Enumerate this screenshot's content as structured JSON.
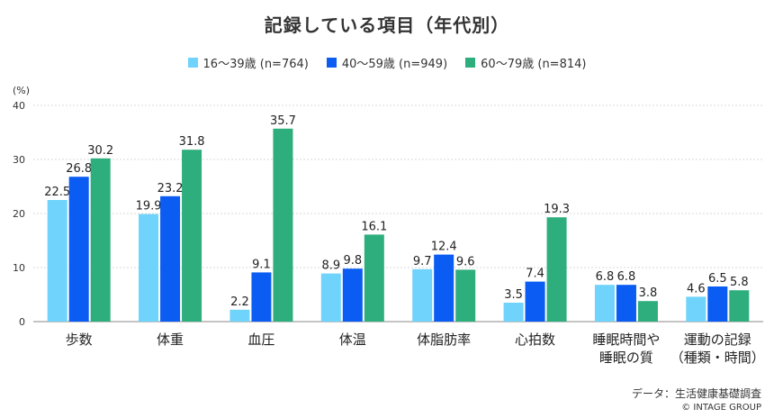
{
  "chart_data": {
    "type": "bar",
    "title": "記録している項目（年代別）",
    "ylabel": "(%)",
    "ylim": [
      0,
      40
    ],
    "yticks": [
      0,
      10,
      20,
      30,
      40
    ],
    "categories": [
      [
        "歩数"
      ],
      [
        "体重"
      ],
      [
        "血圧"
      ],
      [
        "体温"
      ],
      [
        "体脂肪率"
      ],
      [
        "心拍数"
      ],
      [
        "睡眠時間や",
        "睡眠の質"
      ],
      [
        "運動の記録",
        "（種類・時間）"
      ]
    ],
    "series": [
      {
        "name": "16〜39歳 (n=764)",
        "color": "#6fd3fb",
        "values": [
          22.5,
          19.9,
          2.2,
          8.9,
          9.7,
          3.5,
          6.8,
          4.6
        ]
      },
      {
        "name": "40〜59歳 (n=949)",
        "color": "#0a5cf2",
        "values": [
          26.8,
          23.2,
          9.1,
          9.8,
          12.4,
          7.4,
          6.8,
          6.5
        ]
      },
      {
        "name": "60〜79歳 (n=814)",
        "color": "#2eae7c",
        "values": [
          30.2,
          31.8,
          35.7,
          16.1,
          9.6,
          19.3,
          3.8,
          5.8
        ]
      }
    ]
  },
  "footer": {
    "source": "データ：生活健康基礎調査",
    "copyright": "© INTAGE GROUP"
  }
}
